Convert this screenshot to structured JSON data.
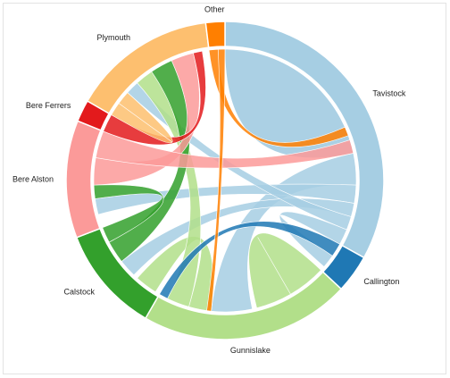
{
  "chart_data": {
    "type": "chord",
    "title": "",
    "groups": [
      {
        "name": "Tavistock",
        "color": "#a6cee3",
        "arc_degrees": [
          0,
          119
        ]
      },
      {
        "name": "Callington",
        "color": "#1f78b4",
        "arc_degrees": [
          119,
          133
        ]
      },
      {
        "name": "Gunnislake",
        "color": "#b2df8a",
        "arc_degrees": [
          133,
          210
        ]
      },
      {
        "name": "Calstock",
        "color": "#33a02c",
        "arc_degrees": [
          210,
          249
        ]
      },
      {
        "name": "Bere Alston",
        "color": "#fb9a99",
        "arc_degrees": [
          249,
          292
        ]
      },
      {
        "name": "Bere Ferrers",
        "color": "#e31a1c",
        "arc_degrees": [
          292,
          300
        ]
      },
      {
        "name": "Plymouth",
        "color": "#fdbf6f",
        "arc_degrees": [
          300,
          353
        ]
      },
      {
        "name": "Other",
        "color": "#ff7f00",
        "arc_degrees": [
          353,
          360
        ]
      }
    ],
    "ribbons": [
      {
        "source": "Tavistock",
        "target": "Tavistock",
        "src_deg": [
          0,
          78
        ],
        "tgt_deg": [
          0,
          0
        ],
        "kind": "self"
      },
      {
        "source": "Tavistock",
        "target": "Gunnislake",
        "src_deg": [
          78,
          92
        ],
        "tgt_deg": [
          168,
          186
        ]
      },
      {
        "source": "Tavistock",
        "target": "Bere Alston",
        "src_deg": [
          92,
          100
        ],
        "tgt_deg": [
          255,
          262
        ]
      },
      {
        "source": "Tavistock",
        "target": "Calstock",
        "src_deg": [
          100,
          106
        ],
        "tgt_deg": [
          224,
          232
        ]
      },
      {
        "source": "Tavistock",
        "target": "Plymouth",
        "src_deg": [
          106,
          112
        ],
        "tgt_deg": [
          312,
          318
        ]
      },
      {
        "source": "Tavistock",
        "target": "Callington",
        "src_deg": [
          112,
          119
        ],
        "tgt_deg": [
          125,
          131
        ]
      },
      {
        "source": "Gunnislake",
        "target": "Gunnislake",
        "src_deg": [
          133,
          150
        ],
        "tgt_deg": [
          150,
          166
        ]
      },
      {
        "source": "Gunnislake",
        "target": "Calstock",
        "src_deg": [
          186,
          196
        ],
        "tgt_deg": [
          212,
          222
        ]
      },
      {
        "source": "Gunnislake",
        "target": "Plymouth",
        "src_deg": [
          196,
          206
        ],
        "tgt_deg": [
          318,
          326
        ]
      },
      {
        "source": "Callington",
        "target": "Gunnislake",
        "src_deg": [
          119,
          125
        ],
        "tgt_deg": [
          206,
          210
        ]
      },
      {
        "source": "Calstock",
        "target": "Plymouth",
        "src_deg": [
          232,
          242
        ],
        "tgt_deg": [
          326,
          336
        ]
      },
      {
        "source": "Calstock",
        "target": "Bere Alston",
        "src_deg": [
          242,
          249
        ],
        "tgt_deg": [
          262,
          268
        ]
      },
      {
        "source": "Bere Alston",
        "target": "Plymouth",
        "src_deg": [
          268,
          280
        ],
        "tgt_deg": [
          336,
          346
        ]
      },
      {
        "source": "Bere Alston",
        "target": "Tavistock",
        "src_deg": [
          280,
          292
        ],
        "tgt_deg": [
          72,
          78
        ]
      },
      {
        "source": "Bere Ferrers",
        "target": "Plymouth",
        "src_deg": [
          292,
          300
        ],
        "tgt_deg": [
          346,
          350
        ]
      },
      {
        "source": "Plymouth",
        "target": "Plymouth",
        "src_deg": [
          300,
          306
        ],
        "tgt_deg": [
          306,
          312
        ]
      },
      {
        "source": "Other",
        "target": "Tavistock",
        "src_deg": [
          353,
          357
        ],
        "tgt_deg": [
          66,
          70
        ]
      },
      {
        "source": "Other",
        "target": "Gunnislake",
        "src_deg": [
          357,
          360
        ],
        "tgt_deg": [
          186,
          188
        ]
      }
    ]
  }
}
